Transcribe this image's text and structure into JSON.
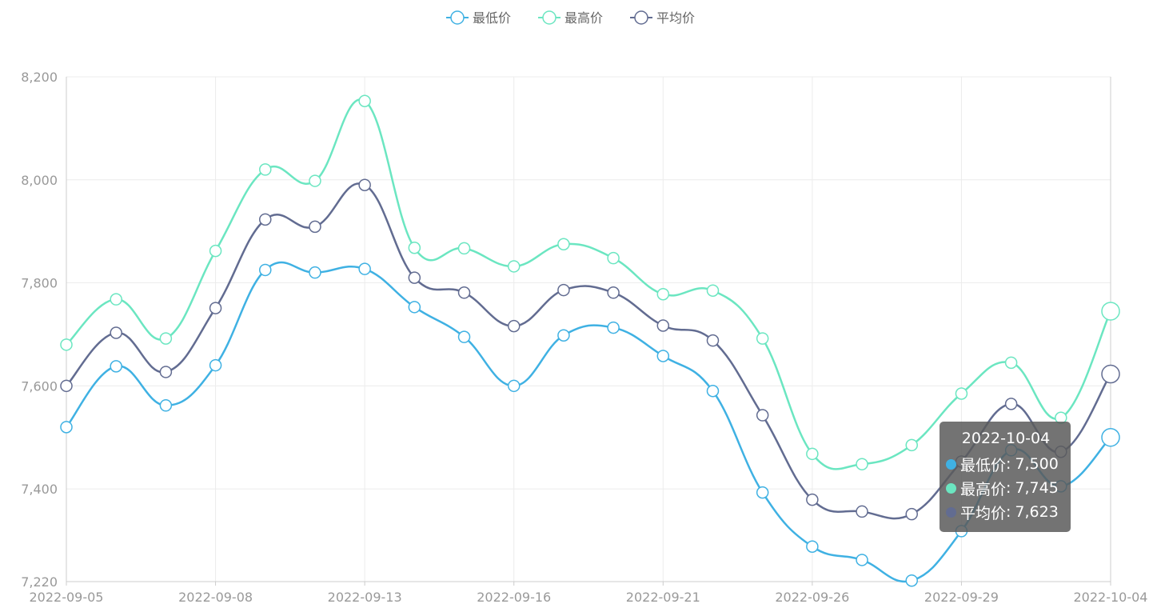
{
  "chart_data": {
    "type": "line",
    "smooth": true,
    "legend_position": "top-center",
    "grid": true,
    "x": [
      "2022-09-05",
      "2022-09-06",
      "2022-09-07",
      "2022-09-08",
      "2022-09-09",
      "2022-09-12",
      "2022-09-13",
      "2022-09-14",
      "2022-09-15",
      "2022-09-16",
      "2022-09-19",
      "2022-09-20",
      "2022-09-21",
      "2022-09-22",
      "2022-09-23",
      "2022-09-26",
      "2022-09-27",
      "2022-09-28",
      "2022-09-29",
      "2022-09-30",
      "2022-10-03",
      "2022-10-04"
    ],
    "x_tick_labels": [
      "2022-09-05",
      "2022-09-08",
      "2022-09-13",
      "2022-09-16",
      "2022-09-21",
      "2022-09-26",
      "2022-09-29",
      "2022-10-04"
    ],
    "ylim": [
      7220,
      8200
    ],
    "y_ticks": [
      7220,
      7400,
      7600,
      7800,
      8000,
      8200
    ],
    "series": [
      {
        "name": "最低价",
        "color": "#3fb1e3",
        "values": [
          7520,
          7638,
          7562,
          7640,
          7825,
          7820,
          7827,
          7753,
          7695,
          7600,
          7698,
          7713,
          7658,
          7590,
          7393,
          7288,
          7262,
          7222,
          7318,
          7475,
          7405,
          7500
        ]
      },
      {
        "name": "最高价",
        "color": "#6be6c1",
        "values": [
          7680,
          7768,
          7692,
          7862,
          8020,
          7998,
          8153,
          7868,
          7867,
          7832,
          7875,
          7848,
          7778,
          7785,
          7692,
          7468,
          7448,
          7485,
          7585,
          7645,
          7538,
          7745
        ]
      },
      {
        "name": "平均价",
        "color": "#626c91",
        "values": [
          7600,
          7703,
          7627,
          7751,
          7923,
          7909,
          7990,
          7810,
          7781,
          7716,
          7786,
          7781,
          7717,
          7688,
          7543,
          7379,
          7356,
          7351,
          7453,
          7565,
          7472,
          7623
        ]
      }
    ]
  },
  "tooltip": {
    "date": "2022-10-04",
    "rows": [
      {
        "label": "最低价",
        "value": "7,500",
        "color": "#3fb1e3"
      },
      {
        "label": "最高价",
        "value": "7,745",
        "color": "#6be6c1"
      },
      {
        "label": "平均价",
        "value": "7,623",
        "color": "#626c91"
      }
    ]
  }
}
